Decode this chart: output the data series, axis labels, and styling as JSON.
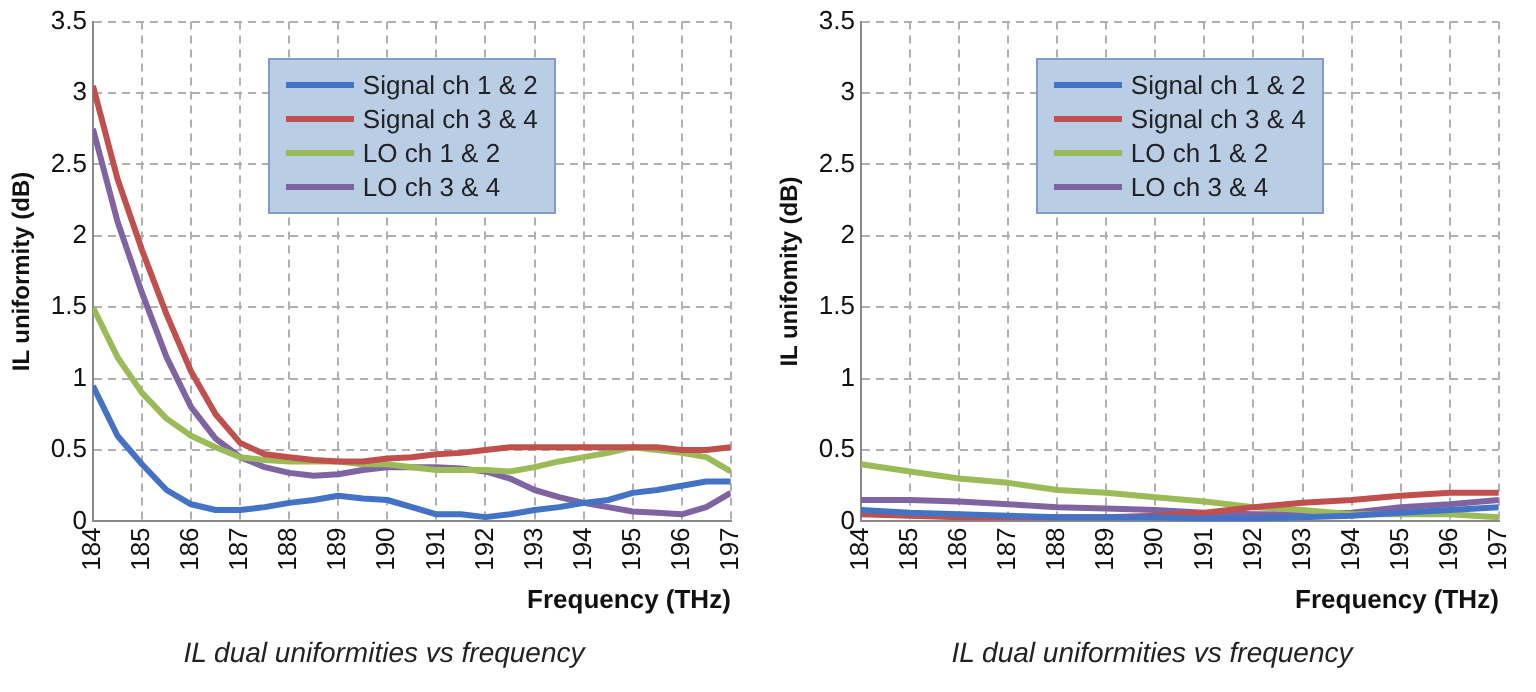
{
  "chart_data": [
    {
      "type": "line",
      "xlabel": "Frequency (THz)",
      "ylabel": "IL uniformity (dB)",
      "annotations": [
        "IL dual uniformities vs frequency"
      ],
      "xlim": [
        184,
        197
      ],
      "xticks": [
        184,
        185,
        186,
        187,
        188,
        189,
        190,
        191,
        192,
        193,
        194,
        195,
        196,
        197
      ],
      "ylim": [
        0,
        3.5
      ],
      "yticks": [
        0,
        0.5,
        1,
        1.5,
        2,
        2.5,
        3,
        3.5
      ],
      "grid": true,
      "legend": "top",
      "marker": "none",
      "line_style": "solid",
      "x": [
        184,
        184.5,
        185,
        185.5,
        186,
        186.5,
        187,
        187.5,
        188,
        188.5,
        189,
        189.5,
        190,
        190.5,
        191,
        191.5,
        192,
        192.5,
        193,
        193.5,
        194,
        194.5,
        195,
        195.5,
        196,
        196.5,
        197
      ],
      "series": [
        {
          "name": "Signal ch 1 & 2",
          "color": "#4472c4",
          "values": [
            0.95,
            0.6,
            0.4,
            0.22,
            0.12,
            0.08,
            0.08,
            0.1,
            0.13,
            0.15,
            0.18,
            0.16,
            0.15,
            0.1,
            0.05,
            0.05,
            0.03,
            0.05,
            0.08,
            0.1,
            0.13,
            0.15,
            0.2,
            0.22,
            0.25,
            0.28,
            0.28
          ]
        },
        {
          "name": "Signal ch 3 & 4",
          "color": "#c0504d",
          "values": [
            3.05,
            2.4,
            1.9,
            1.45,
            1.05,
            0.75,
            0.55,
            0.47,
            0.45,
            0.43,
            0.42,
            0.42,
            0.44,
            0.45,
            0.47,
            0.48,
            0.5,
            0.52,
            0.52,
            0.52,
            0.52,
            0.52,
            0.52,
            0.52,
            0.5,
            0.5,
            0.52
          ]
        },
        {
          "name": "LO ch 1 & 2",
          "color": "#9bbb59",
          "values": [
            1.5,
            1.15,
            0.9,
            0.72,
            0.6,
            0.52,
            0.45,
            0.43,
            0.42,
            0.42,
            0.42,
            0.4,
            0.4,
            0.38,
            0.36,
            0.36,
            0.36,
            0.35,
            0.38,
            0.42,
            0.45,
            0.48,
            0.52,
            0.5,
            0.48,
            0.45,
            0.35
          ]
        },
        {
          "name": "LO ch 3 & 4",
          "color": "#8064a2",
          "values": [
            2.75,
            2.1,
            1.6,
            1.15,
            0.8,
            0.58,
            0.45,
            0.38,
            0.34,
            0.32,
            0.33,
            0.36,
            0.38,
            0.38,
            0.38,
            0.37,
            0.35,
            0.3,
            0.22,
            0.17,
            0.13,
            0.1,
            0.07,
            0.06,
            0.05,
            0.1,
            0.2
          ]
        }
      ]
    },
    {
      "type": "line",
      "xlabel": "Frequency (THz)",
      "ylabel": "IL unifomity (dB)",
      "annotations": [
        "IL dual uniformities vs frequency"
      ],
      "xlim": [
        184,
        197
      ],
      "xticks": [
        184,
        185,
        186,
        187,
        188,
        189,
        190,
        191,
        192,
        193,
        194,
        195,
        196,
        197
      ],
      "ylim": [
        0,
        3.5
      ],
      "yticks": [
        0,
        0.5,
        1,
        1.5,
        2,
        2.5,
        3,
        3.5
      ],
      "grid": true,
      "legend": "top",
      "marker": "none",
      "line_style": "solid",
      "x": [
        184,
        185,
        186,
        187,
        188,
        189,
        190,
        191,
        192,
        193,
        194,
        195,
        196,
        197
      ],
      "series": [
        {
          "name": "Signal ch 1 & 2",
          "color": "#4472c4",
          "values": [
            0.08,
            0.06,
            0.05,
            0.04,
            0.03,
            0.03,
            0.03,
            0.02,
            0.02,
            0.03,
            0.04,
            0.06,
            0.08,
            0.1
          ]
        },
        {
          "name": "Signal ch 3 & 4",
          "color": "#c0504d",
          "values": [
            0.05,
            0.04,
            0.03,
            0.03,
            0.03,
            0.03,
            0.04,
            0.06,
            0.1,
            0.13,
            0.15,
            0.18,
            0.2,
            0.2
          ]
        },
        {
          "name": "LO ch 1 & 2",
          "color": "#9bbb59",
          "values": [
            0.4,
            0.35,
            0.3,
            0.27,
            0.22,
            0.2,
            0.17,
            0.14,
            0.1,
            0.08,
            0.05,
            0.05,
            0.05,
            0.03
          ]
        },
        {
          "name": "LO ch 3 & 4",
          "color": "#8064a2",
          "values": [
            0.15,
            0.15,
            0.14,
            0.12,
            0.1,
            0.09,
            0.08,
            0.06,
            0.05,
            0.05,
            0.06,
            0.1,
            0.12,
            0.15
          ]
        }
      ]
    }
  ]
}
